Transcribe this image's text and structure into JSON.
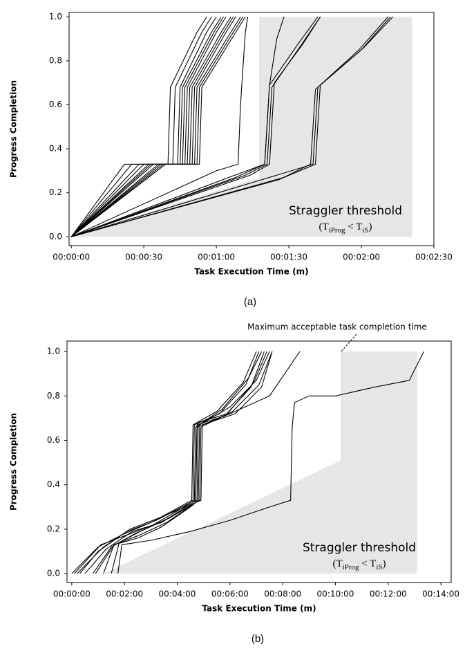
{
  "chart_data": [
    {
      "type": "line",
      "caption": "(a)",
      "xlabel": "Task Execution Time (m)",
      "ylabel": "Progress Completion",
      "xlim": [
        -0.9,
        150
      ],
      "ylim": [
        -0.04,
        1.02
      ],
      "xticks": [
        {
          "value": 0,
          "label": "00:00:00"
        },
        {
          "value": 30,
          "label": "00:00:30"
        },
        {
          "value": 60,
          "label": "00:01:00"
        },
        {
          "value": 90,
          "label": "00:01:30"
        },
        {
          "value": 120,
          "label": "00:02:00"
        },
        {
          "value": 150,
          "label": "00:02:30"
        }
      ],
      "yticks": [
        {
          "value": 0,
          "label": "0.0"
        },
        {
          "value": 0.2,
          "label": "0.2"
        },
        {
          "value": 0.4,
          "label": "0.4"
        },
        {
          "value": 0.6,
          "label": "0.6"
        },
        {
          "value": 0.8,
          "label": "0.8"
        },
        {
          "value": 1,
          "label": "1.0"
        }
      ],
      "color": "#000000",
      "shaded_region": {
        "color": "#e6e6e6",
        "x": [
          0,
          77.7,
          77.7,
          141,
          141
        ],
        "y": [
          0,
          0.27,
          1,
          1,
          0
        ]
      },
      "annotation": {
        "text": "Straggler threshold",
        "formula": [
          "(T",
          "iProg",
          " < T",
          "iS",
          ")"
        ]
      },
      "series": [
        {
          "x": [
            0,
            22,
            40,
            41,
            52,
            56
          ],
          "values": [
            0,
            0.33,
            0.33,
            0.68,
            0.93,
            1
          ]
        },
        {
          "x": [
            0,
            25,
            42,
            43,
            54,
            58
          ],
          "values": [
            0,
            0.33,
            0.33,
            0.68,
            0.93,
            1
          ]
        },
        {
          "x": [
            0,
            28,
            44,
            45,
            56,
            60
          ],
          "values": [
            0,
            0.33,
            0.33,
            0.68,
            0.93,
            1
          ]
        },
        {
          "x": [
            0,
            30,
            45,
            46,
            58,
            62
          ],
          "values": [
            0,
            0.33,
            0.33,
            0.68,
            0.93,
            1
          ]
        },
        {
          "x": [
            0,
            32,
            46,
            47,
            59,
            63
          ],
          "values": [
            0,
            0.33,
            0.33,
            0.68,
            0.93,
            1
          ]
        },
        {
          "x": [
            0,
            34,
            47,
            48,
            60,
            64
          ],
          "values": [
            0,
            0.33,
            0.33,
            0.68,
            0.93,
            1
          ]
        },
        {
          "x": [
            0,
            36,
            48,
            49,
            62,
            66
          ],
          "values": [
            0,
            0.33,
            0.33,
            0.68,
            0.93,
            1
          ]
        },
        {
          "x": [
            0,
            37,
            49,
            50,
            63,
            67
          ],
          "values": [
            0,
            0.33,
            0.33,
            0.68,
            0.93,
            1
          ]
        },
        {
          "x": [
            0,
            38,
            50,
            51,
            64,
            68
          ],
          "values": [
            0,
            0.33,
            0.33,
            0.68,
            0.93,
            1
          ]
        },
        {
          "x": [
            0,
            39,
            51,
            52,
            66,
            70
          ],
          "values": [
            0,
            0.33,
            0.33,
            0.68,
            0.93,
            1
          ]
        },
        {
          "x": [
            0,
            39,
            53,
            54,
            68,
            72
          ],
          "values": [
            0,
            0.33,
            0.33,
            0.68,
            0.93,
            1
          ]
        },
        {
          "x": [
            0,
            33,
            52,
            53,
            67,
            71
          ],
          "values": [
            0,
            0.33,
            0.33,
            0.68,
            0.93,
            1
          ]
        },
        {
          "x": [
            0,
            60,
            69,
            70,
            72,
            73
          ],
          "values": [
            0,
            0.3,
            0.33,
            0.6,
            0.93,
            1
          ]
        },
        {
          "x": [
            0,
            70,
            80,
            82,
            85,
            88
          ],
          "values": [
            0,
            0.29,
            0.33,
            0.69,
            0.9,
            1
          ]
        },
        {
          "x": [
            0,
            72,
            81,
            83,
            95,
            103
          ],
          "values": [
            0,
            0.28,
            0.33,
            0.68,
            0.87,
            1
          ]
        },
        {
          "x": [
            0,
            74,
            82,
            84,
            96,
            103
          ],
          "values": [
            0,
            0.28,
            0.33,
            0.7,
            0.88,
            1
          ]
        },
        {
          "x": [
            0,
            68,
            80,
            82,
            94,
            102
          ],
          "values": [
            0,
            0.27,
            0.33,
            0.69,
            0.88,
            1
          ]
        },
        {
          "x": [
            0,
            85,
            100,
            102,
            120,
            132
          ],
          "values": [
            0,
            0.28,
            0.33,
            0.68,
            0.85,
            1
          ]
        },
        {
          "x": [
            0,
            88,
            101,
            103,
            121,
            133
          ],
          "values": [
            0,
            0.27,
            0.33,
            0.69,
            0.86,
            1
          ]
        },
        {
          "x": [
            0,
            86,
            99,
            101,
            119,
            131
          ],
          "values": [
            0,
            0.26,
            0.33,
            0.67,
            0.85,
            1
          ]
        }
      ]
    },
    {
      "type": "line",
      "caption": "(b)",
      "xlabel": "Task Execution Time (m)",
      "ylabel": "Progress Completion",
      "xlim": [
        -0.18,
        14.39
      ],
      "ylim": [
        -0.04,
        1.047
      ],
      "xticks": [
        {
          "value": 0,
          "label": "00:00:00"
        },
        {
          "value": 2,
          "label": "00:02:00"
        },
        {
          "value": 4,
          "label": "00:04:00"
        },
        {
          "value": 6,
          "label": "00:06:00"
        },
        {
          "value": 8,
          "label": "00:08:00"
        },
        {
          "value": 10,
          "label": "00:10:00"
        },
        {
          "value": 12,
          "label": "00:12:00"
        },
        {
          "value": 14,
          "label": "00:14:00"
        }
      ],
      "yticks": [
        {
          "value": 0,
          "label": "0.0"
        },
        {
          "value": 0.2,
          "label": "0.2"
        },
        {
          "value": 0.4,
          "label": "0.4"
        },
        {
          "value": 0.6,
          "label": "0.6"
        },
        {
          "value": 0.8,
          "label": "0.8"
        },
        {
          "value": 1,
          "label": "1.0"
        }
      ],
      "color": "#000000",
      "shaded_region": {
        "color": "#e6e6e6",
        "x": [
          1.2,
          10.2,
          10.2,
          13.1,
          13.1
        ],
        "y": [
          0,
          0.51,
          1,
          1,
          0
        ]
      },
      "annotation": {
        "text": "Straggler threshold",
        "formula": [
          "(T",
          "iProg",
          " < T",
          "iS",
          ")"
        ]
      },
      "top_annotation": "Maximum acceptable task completion time",
      "series": [
        {
          "x": [
            0,
            1,
            2,
            3,
            4.4,
            4.55,
            4.6,
            5.5,
            6.5,
            7.0
          ],
          "values": [
            0,
            0.12,
            0.18,
            0.23,
            0.32,
            0.33,
            0.67,
            0.73,
            0.86,
            1
          ]
        },
        {
          "x": [
            0.1,
            1.1,
            2,
            3.1,
            4.4,
            4.6,
            4.65,
            5.6,
            6.6,
            7.1
          ],
          "values": [
            0,
            0.13,
            0.17,
            0.22,
            0.31,
            0.33,
            0.67,
            0.72,
            0.85,
            1
          ]
        },
        {
          "x": [
            0.2,
            1.2,
            2.1,
            3.2,
            4.5,
            4.65,
            4.7,
            5.7,
            6.7,
            7.2
          ],
          "values": [
            0,
            0.12,
            0.19,
            0.24,
            0.32,
            0.33,
            0.66,
            0.74,
            0.88,
            1
          ]
        },
        {
          "x": [
            0.3,
            1,
            2.2,
            3.3,
            4.5,
            4.7,
            4.75,
            5.8,
            6.8,
            7.3
          ],
          "values": [
            0,
            0.1,
            0.2,
            0.25,
            0.31,
            0.33,
            0.67,
            0.71,
            0.84,
            1
          ]
        },
        {
          "x": [
            0.5,
            1.3,
            2.3,
            3.4,
            4.6,
            4.75,
            4.8,
            5.9,
            6.9,
            7.4
          ],
          "values": [
            0,
            0.11,
            0.19,
            0.23,
            0.32,
            0.33,
            0.68,
            0.72,
            0.86,
            1
          ]
        },
        {
          "x": [
            0.8,
            1.5,
            2.4,
            3.5,
            4.6,
            4.8,
            4.85,
            6,
            7,
            7.5
          ],
          "values": [
            0,
            0.12,
            0.18,
            0.24,
            0.31,
            0.33,
            0.67,
            0.75,
            0.87,
            1
          ]
        },
        {
          "x": [
            1.2,
            1.6,
            2.5,
            3.6,
            4.7,
            4.85,
            4.9,
            6.1,
            7.1,
            7.6
          ],
          "values": [
            0,
            0.13,
            0.17,
            0.23,
            0.32,
            0.33,
            0.66,
            0.73,
            0.85,
            1
          ]
        },
        {
          "x": [
            1.5,
            1.8,
            2.6,
            3.7,
            4.7,
            4.9,
            4.95,
            6.2,
            7.2,
            7.6
          ],
          "values": [
            0,
            0.14,
            0.19,
            0.25,
            0.32,
            0.33,
            0.67,
            0.72,
            0.84,
            1
          ]
        },
        {
          "x": [
            0.9,
            1.6,
            2.5,
            3.4,
            4.5,
            4.7,
            4.75,
            6,
            7.5,
            8.65
          ],
          "values": [
            0,
            0.13,
            0.16,
            0.21,
            0.3,
            0.32,
            0.66,
            0.72,
            0.8,
            1
          ]
        },
        {
          "x": [
            1.75,
            1.9,
            3,
            4.5,
            6,
            7.5,
            8.3,
            8.36,
            8.45,
            9,
            10,
            11.5,
            12.8,
            13.35
          ],
          "values": [
            0,
            0.13,
            0.15,
            0.19,
            0.24,
            0.3,
            0.33,
            0.66,
            0.77,
            0.8,
            0.8,
            0.84,
            0.87,
            1
          ]
        }
      ]
    }
  ]
}
